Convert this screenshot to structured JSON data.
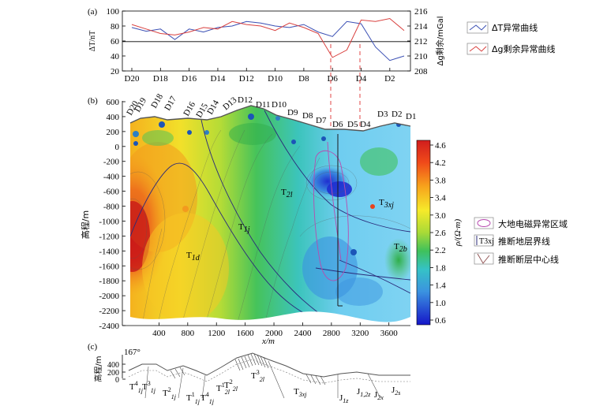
{
  "panel_a": {
    "label": "(a)",
    "left_axis_label": "ΔT/nT",
    "right_axis_label": "Δg剩余/mGal",
    "left_ticks": [
      "100",
      "80",
      "60",
      "40",
      "20"
    ],
    "right_ticks": [
      "216",
      "214",
      "212",
      "210",
      "208"
    ],
    "x_ticks": [
      "D20",
      "D18",
      "D16",
      "D14",
      "D12",
      "D10",
      "D8",
      "D6",
      "D4",
      "D2"
    ],
    "legend": [
      {
        "label": "ΔT异常曲线",
        "color": "#3a4fb4"
      },
      {
        "label": "Δg剩余异常曲线",
        "color": "#d9413f"
      }
    ],
    "chart_data": {
      "type": "line",
      "x_stations": [
        "D20",
        "D19",
        "D18",
        "D17",
        "D16",
        "D15",
        "D14",
        "D13",
        "D12",
        "D11",
        "D10",
        "D9",
        "D8",
        "D7",
        "D6",
        "D5",
        "D4",
        "D3",
        "D2",
        "D1"
      ],
      "series": [
        {
          "name": "ΔT异常曲线",
          "axis": "left",
          "values": [
            78,
            73,
            76,
            62,
            76,
            72,
            78,
            80,
            86,
            84,
            80,
            78,
            82,
            72,
            66,
            86,
            83,
            52,
            34,
            40
          ]
        },
        {
          "name": "Δg剩余异常曲线",
          "axis": "right",
          "values": [
            214.2,
            213.6,
            213.0,
            212.8,
            213.2,
            213.8,
            213.6,
            214.6,
            214.2,
            214.0,
            213.4,
            214.4,
            213.8,
            213.0,
            209.8,
            210.8,
            214.8,
            214.6,
            215.0,
            213.4
          ]
        }
      ],
      "left_ylim": [
        20,
        100
      ],
      "right_ylim": [
        208,
        216
      ],
      "reference_line": 60
    }
  },
  "panel_b": {
    "label": "(b)",
    "y_axis_label": "高程/m",
    "x_axis_label": "x/m",
    "y_ticks": [
      "600",
      "400",
      "200",
      "0",
      "-200",
      "-400",
      "-600",
      "-800",
      "-1000",
      "-1200",
      "-1400",
      "-1600",
      "-1800",
      "-2000",
      "-2200",
      "-2400"
    ],
    "x_ticks": [
      "400",
      "800",
      "1200",
      "1600",
      "2000",
      "2400",
      "2800",
      "3200",
      "3600"
    ],
    "stations": [
      "D20",
      "D19",
      "D18",
      "D17",
      "D16",
      "D15",
      "D14",
      "D13",
      "D12",
      "D11",
      "D10",
      "D9",
      "D8",
      "D7",
      "D6",
      "D5",
      "D4",
      "D3",
      "D2",
      "D1"
    ],
    "units": [
      {
        "name": "T",
        "sub": "1d",
        "key": "t1d"
      },
      {
        "name": "T",
        "sub": "1j",
        "key": "t1j"
      },
      {
        "name": "T",
        "sub": "2l",
        "key": "t2l"
      },
      {
        "name": "T",
        "sub": "3xj",
        "key": "t3xj"
      },
      {
        "name": "T",
        "sub": "2b",
        "key": "t2b"
      }
    ],
    "colorbar": {
      "label": "ρ/(Ω·m)",
      "ticks": [
        "4.6",
        "4.2",
        "3.8",
        "3.4",
        "3.0",
        "2.6",
        "2.2",
        "1.8",
        "1.4",
        "1.0",
        "0.6"
      ],
      "range": [
        0.6,
        4.6
      ]
    },
    "legend": [
      {
        "label": "大地电磁异常区域",
        "icon": "ellipse-icon"
      },
      {
        "label": "推断地层界线",
        "icon": "boundary-line-icon",
        "tag": "T3xj"
      },
      {
        "label": "推断断层中心线",
        "icon": "fault-line-icon"
      }
    ]
  },
  "panel_c": {
    "label": "(c)",
    "angle": "167°",
    "y_axis_label": "高程/m",
    "y_ticks": [
      "400",
      "200",
      "0"
    ],
    "units": [
      {
        "name": "T",
        "sub": "1j",
        "sup": "4"
      },
      {
        "name": "T",
        "sub": "1j",
        "sup": "3"
      },
      {
        "name": "T",
        "sub": "1j",
        "sup": "2"
      },
      {
        "name": "T",
        "sub": "1j",
        "sup": "1"
      },
      {
        "name": "T",
        "sub": "1j",
        "sup": "4"
      },
      {
        "name": "T",
        "sub": "2l",
        "sup": "1"
      },
      {
        "name": "T",
        "sub": "2l",
        "sup": "2"
      },
      {
        "name": "T",
        "sub": "2l",
        "sup": "3"
      },
      {
        "name": "T",
        "sub": "3xj",
        "sup": ""
      },
      {
        "name": "J",
        "sub": "1z",
        "sup": ""
      },
      {
        "name": "J",
        "sub": "1,2z",
        "sup": ""
      },
      {
        "name": "J",
        "sub": "2x",
        "sup": ""
      },
      {
        "name": "J",
        "sub": "2s",
        "sup": ""
      }
    ]
  }
}
